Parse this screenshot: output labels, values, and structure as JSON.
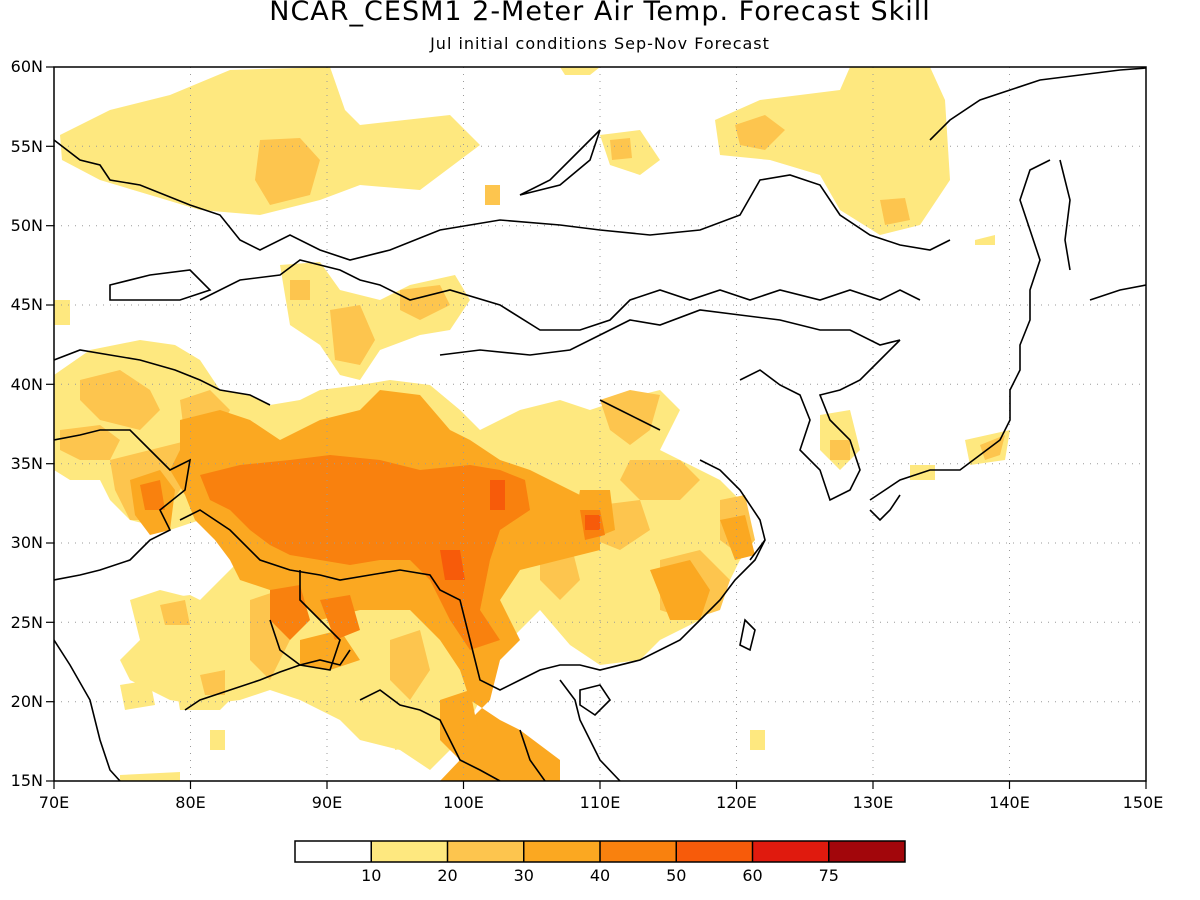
{
  "header": {
    "title": "NCAR_CESM1 2-Meter Air Temp. Forecast Skill",
    "subtitle": "Jul initial conditions  Sep-Nov Forecast"
  },
  "map": {
    "lon_range": [
      70,
      150
    ],
    "lat_range": [
      15,
      60
    ],
    "x_ticks": [
      "70E",
      "80E",
      "90E",
      "100E",
      "110E",
      "120E",
      "130E",
      "140E",
      "150E"
    ],
    "y_ticks": [
      "15N",
      "20N",
      "25N",
      "30N",
      "35N",
      "40N",
      "45N",
      "50N",
      "55N",
      "60N"
    ],
    "grid": "dotted",
    "palette": [
      "#ffffff",
      "#fee87f",
      "#fdc54e",
      "#fba821",
      "#f9810e",
      "#f75b0a",
      "#f0340b",
      "#e01a0e",
      "#a2060b"
    ]
  },
  "colorbar": {
    "labels": [
      "10",
      "20",
      "30",
      "40",
      "50",
      "60",
      "75"
    ]
  }
}
